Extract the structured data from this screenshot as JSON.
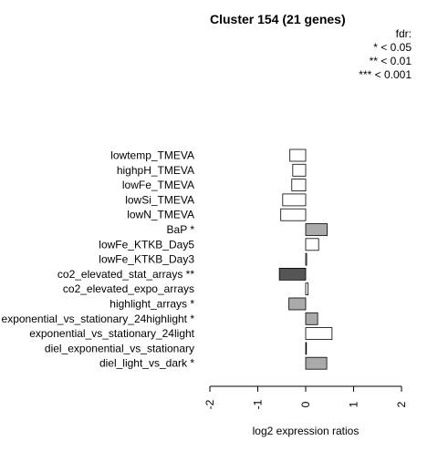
{
  "title": "Cluster 154 (21 genes)",
  "legend": {
    "title": "fdr:",
    "items": [
      "* < 0.05",
      "** < 0.01",
      "*** < 0.001"
    ]
  },
  "chart_data": {
    "type": "bar",
    "orientation": "horizontal",
    "title": "Cluster 154 (21 genes)",
    "xlabel": "log2 expression ratios",
    "ylabel": "",
    "xlim": [
      -2,
      2
    ],
    "xticks": [
      "-2",
      "-1",
      "0",
      "1",
      "2"
    ],
    "categories": [
      "lowtemp_TMEVA",
      "highpH_TMEVA",
      "lowFe_TMEVA",
      "lowSi_TMEVA",
      "lowN_TMEVA",
      "BaP *",
      "lowFe_KTKB_Day5",
      "lowFe_KTKB_Day3",
      "co2_elevated_stat_arrays **",
      "co2_elevated_expo_arrays",
      "highlight_arrays *",
      "exponential_vs_stationary_24highlight *",
      "exponential_vs_stationary_24light",
      "diel_exponential_vs_stationary",
      "diel_light_vs_dark *"
    ],
    "values": [
      -0.33,
      -0.27,
      -0.29,
      -0.48,
      -0.52,
      0.45,
      0.27,
      0.02,
      -0.55,
      0.05,
      -0.35,
      0.25,
      0.55,
      0.01,
      0.44
    ],
    "colors": [
      "#ffffff",
      "#ffffff",
      "#ffffff",
      "#ffffff",
      "#ffffff",
      "#aaaaaa",
      "#ffffff",
      "#ffffff",
      "#555555",
      "#ffffff",
      "#aaaaaa",
      "#aaaaaa",
      "#ffffff",
      "#ffffff",
      "#aaaaaa"
    ]
  }
}
